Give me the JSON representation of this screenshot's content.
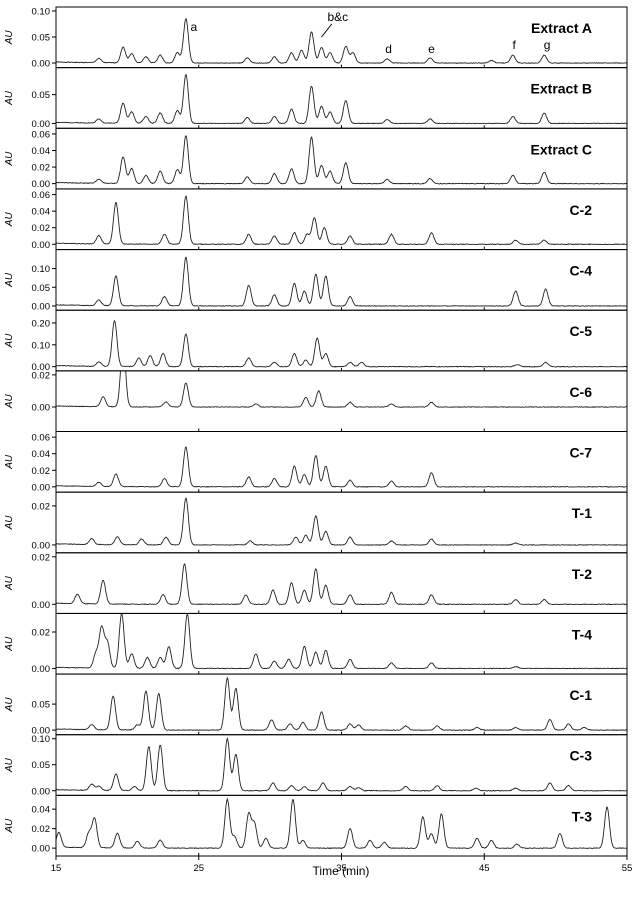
{
  "chart_data": {
    "type": "line",
    "xlabel": "Time (min)",
    "xlim": [
      15,
      55
    ],
    "x_ticks": [
      15,
      25,
      35,
      45,
      55
    ],
    "ylabel": "AU",
    "panels": [
      {
        "name": "Extract A",
        "ylim": [
          -0.005,
          0.1
        ],
        "y_ticks": [
          0.0,
          0.05,
          0.1
        ],
        "peaks": [
          [
            18.0,
            0.008
          ],
          [
            19.7,
            0.03
          ],
          [
            20.3,
            0.018
          ],
          [
            21.3,
            0.012
          ],
          [
            22.3,
            0.015
          ],
          [
            23.5,
            0.02
          ],
          [
            24.1,
            0.085
          ],
          [
            28.4,
            0.01
          ],
          [
            30.3,
            0.012
          ],
          [
            31.5,
            0.02
          ],
          [
            32.2,
            0.025
          ],
          [
            32.9,
            0.06
          ],
          [
            33.6,
            0.03
          ],
          [
            34.2,
            0.02
          ],
          [
            35.3,
            0.032
          ],
          [
            35.8,
            0.02
          ],
          [
            38.2,
            0.008
          ],
          [
            41.2,
            0.01
          ],
          [
            45.5,
            0.005
          ],
          [
            47.0,
            0.015
          ],
          [
            49.2,
            0.015
          ]
        ],
        "annotations": [
          {
            "text": "a",
            "x": 24.1
          },
          {
            "text": "b&c",
            "x": 34.6
          },
          {
            "text": "d",
            "x": 38.3
          },
          {
            "text": "e",
            "x": 41.3
          },
          {
            "text": "f",
            "x": 47.1
          },
          {
            "text": "g",
            "x": 49.4
          }
        ]
      },
      {
        "name": "Extract B",
        "ylim": [
          -0.005,
          0.09
        ],
        "y_ticks": [
          0.0,
          0.05
        ],
        "peaks": [
          [
            18.0,
            0.007
          ],
          [
            19.7,
            0.035
          ],
          [
            20.3,
            0.02
          ],
          [
            21.3,
            0.012
          ],
          [
            22.3,
            0.018
          ],
          [
            23.5,
            0.022
          ],
          [
            24.1,
            0.085
          ],
          [
            28.4,
            0.01
          ],
          [
            30.3,
            0.012
          ],
          [
            31.5,
            0.025
          ],
          [
            32.9,
            0.065
          ],
          [
            33.6,
            0.03
          ],
          [
            34.2,
            0.02
          ],
          [
            35.3,
            0.04
          ],
          [
            38.2,
            0.007
          ],
          [
            41.2,
            0.008
          ],
          [
            47.0,
            0.012
          ],
          [
            49.2,
            0.018
          ]
        ],
        "annotations": []
      },
      {
        "name": "Extract C",
        "ylim": [
          -0.004,
          0.062
        ],
        "y_ticks": [
          0.0,
          0.02,
          0.04,
          0.06
        ],
        "peaks": [
          [
            18.0,
            0.005
          ],
          [
            19.7,
            0.032
          ],
          [
            20.3,
            0.018
          ],
          [
            21.3,
            0.01
          ],
          [
            22.3,
            0.015
          ],
          [
            23.5,
            0.017
          ],
          [
            24.1,
            0.058
          ],
          [
            28.4,
            0.008
          ],
          [
            30.3,
            0.012
          ],
          [
            31.5,
            0.018
          ],
          [
            32.9,
            0.056
          ],
          [
            33.6,
            0.022
          ],
          [
            34.2,
            0.015
          ],
          [
            35.3,
            0.025
          ],
          [
            38.2,
            0.005
          ],
          [
            41.2,
            0.006
          ],
          [
            47.0,
            0.01
          ],
          [
            49.2,
            0.014
          ]
        ],
        "annotations": []
      },
      {
        "name": "C-2",
        "ylim": [
          -0.004,
          0.062
        ],
        "y_ticks": [
          0.0,
          0.02,
          0.04,
          0.06
        ],
        "peaks": [
          [
            18.0,
            0.01
          ],
          [
            19.2,
            0.05
          ],
          [
            22.6,
            0.012
          ],
          [
            24.1,
            0.058
          ],
          [
            28.5,
            0.012
          ],
          [
            30.3,
            0.01
          ],
          [
            31.7,
            0.014
          ],
          [
            32.6,
            0.012
          ],
          [
            33.1,
            0.032
          ],
          [
            33.8,
            0.02
          ],
          [
            35.6,
            0.01
          ],
          [
            38.5,
            0.012
          ],
          [
            41.3,
            0.014
          ],
          [
            47.2,
            0.005
          ],
          [
            49.2,
            0.005
          ]
        ],
        "annotations": []
      },
      {
        "name": "C-4",
        "ylim": [
          -0.006,
          0.14
        ],
        "y_ticks": [
          0.0,
          0.05,
          0.1
        ],
        "peaks": [
          [
            18.0,
            0.015
          ],
          [
            19.2,
            0.08
          ],
          [
            22.6,
            0.025
          ],
          [
            24.1,
            0.13
          ],
          [
            28.5,
            0.055
          ],
          [
            30.3,
            0.03
          ],
          [
            31.7,
            0.06
          ],
          [
            32.4,
            0.04
          ],
          [
            33.2,
            0.085
          ],
          [
            33.9,
            0.08
          ],
          [
            35.6,
            0.025
          ],
          [
            47.2,
            0.04
          ],
          [
            49.3,
            0.045
          ]
        ],
        "annotations": []
      },
      {
        "name": "C-5",
        "ylim": [
          -0.01,
          0.24
        ],
        "y_ticks": [
          0.0,
          0.1,
          0.2
        ],
        "peaks": [
          [
            18.0,
            0.02
          ],
          [
            19.1,
            0.21
          ],
          [
            20.8,
            0.04
          ],
          [
            21.6,
            0.05
          ],
          [
            22.5,
            0.06
          ],
          [
            24.1,
            0.15
          ],
          [
            28.5,
            0.04
          ],
          [
            30.3,
            0.02
          ],
          [
            31.7,
            0.06
          ],
          [
            32.5,
            0.03
          ],
          [
            33.3,
            0.13
          ],
          [
            33.9,
            0.06
          ],
          [
            35.6,
            0.02
          ],
          [
            36.4,
            0.02
          ],
          [
            47.3,
            0.01
          ],
          [
            49.3,
            0.02
          ]
        ],
        "annotations": []
      },
      {
        "name": "C-6",
        "ylim": [
          -0.014,
          0.02
        ],
        "y_ticks": [
          0.0,
          0.02
        ],
        "peaks": [
          [
            18.3,
            0.006
          ],
          [
            19.7,
            0.04
          ],
          [
            22.7,
            0.003
          ],
          [
            24.1,
            0.015
          ],
          [
            29.0,
            0.002
          ],
          [
            32.5,
            0.006
          ],
          [
            33.4,
            0.01
          ],
          [
            35.6,
            0.003
          ],
          [
            38.5,
            0.002
          ],
          [
            41.3,
            0.003
          ]
        ],
        "annotations": []
      },
      {
        "name": "C-7",
        "ylim": [
          -0.004,
          0.062
        ],
        "y_ticks": [
          0.0,
          0.02,
          0.04,
          0.06
        ],
        "peaks": [
          [
            18.0,
            0.005
          ],
          [
            19.2,
            0.015
          ],
          [
            22.6,
            0.01
          ],
          [
            24.1,
            0.048
          ],
          [
            28.5,
            0.012
          ],
          [
            30.3,
            0.01
          ],
          [
            31.7,
            0.025
          ],
          [
            32.4,
            0.015
          ],
          [
            33.2,
            0.038
          ],
          [
            33.9,
            0.025
          ],
          [
            35.6,
            0.008
          ],
          [
            38.5,
            0.007
          ],
          [
            41.3,
            0.017
          ]
        ],
        "annotations": []
      },
      {
        "name": "T-1",
        "ylim": [
          -0.003,
          0.025
        ],
        "y_ticks": [
          0.0,
          0.02
        ],
        "peaks": [
          [
            17.5,
            0.003
          ],
          [
            19.3,
            0.004
          ],
          [
            21.0,
            0.003
          ],
          [
            22.7,
            0.004
          ],
          [
            24.1,
            0.024
          ],
          [
            28.6,
            0.002
          ],
          [
            31.8,
            0.004
          ],
          [
            32.5,
            0.005
          ],
          [
            33.2,
            0.015
          ],
          [
            33.9,
            0.007
          ],
          [
            35.6,
            0.004
          ],
          [
            38.5,
            0.002
          ],
          [
            41.3,
            0.003
          ],
          [
            47.2,
            0.001
          ]
        ],
        "annotations": []
      },
      {
        "name": "T-2",
        "ylim": [
          -0.003,
          0.02
        ],
        "y_ticks": [
          0.0,
          0.02
        ],
        "peaks": [
          [
            16.5,
            0.004
          ],
          [
            18.3,
            0.01
          ],
          [
            22.5,
            0.004
          ],
          [
            24.0,
            0.017
          ],
          [
            28.3,
            0.004
          ],
          [
            30.2,
            0.006
          ],
          [
            31.5,
            0.009
          ],
          [
            32.4,
            0.006
          ],
          [
            33.2,
            0.015
          ],
          [
            33.9,
            0.008
          ],
          [
            35.6,
            0.004
          ],
          [
            38.5,
            0.005
          ],
          [
            41.3,
            0.004
          ],
          [
            47.2,
            0.002
          ],
          [
            49.2,
            0.002
          ]
        ],
        "annotations": []
      },
      {
        "name": "T-4",
        "ylim": [
          -0.002,
          0.028
        ],
        "y_ticks": [
          0.0,
          0.02
        ],
        "peaks": [
          [
            17.8,
            0.008
          ],
          [
            18.2,
            0.022
          ],
          [
            18.6,
            0.014
          ],
          [
            19.6,
            0.03
          ],
          [
            20.3,
            0.008
          ],
          [
            21.4,
            0.006
          ],
          [
            22.3,
            0.006
          ],
          [
            22.9,
            0.012
          ],
          [
            24.2,
            0.03
          ],
          [
            29.0,
            0.008
          ],
          [
            30.3,
            0.004
          ],
          [
            31.3,
            0.005
          ],
          [
            32.4,
            0.012
          ],
          [
            33.2,
            0.009
          ],
          [
            33.9,
            0.01
          ],
          [
            35.6,
            0.005
          ],
          [
            38.5,
            0.003
          ],
          [
            41.3,
            0.003
          ],
          [
            47.2,
            0.001
          ]
        ],
        "annotations": []
      },
      {
        "name": "C-1",
        "ylim": [
          -0.005,
          0.1
        ],
        "y_ticks": [
          0.0,
          0.05
        ],
        "peaks": [
          [
            17.5,
            0.01
          ],
          [
            19.0,
            0.065
          ],
          [
            20.7,
            0.01
          ],
          [
            21.3,
            0.075
          ],
          [
            22.2,
            0.07
          ],
          [
            27.0,
            0.1
          ],
          [
            27.6,
            0.08
          ],
          [
            30.1,
            0.02
          ],
          [
            31.4,
            0.012
          ],
          [
            32.3,
            0.015
          ],
          [
            33.6,
            0.035
          ],
          [
            35.6,
            0.012
          ],
          [
            36.2,
            0.01
          ],
          [
            39.5,
            0.008
          ],
          [
            41.7,
            0.008
          ],
          [
            44.5,
            0.005
          ],
          [
            47.2,
            0.005
          ],
          [
            49.6,
            0.02
          ],
          [
            50.9,
            0.012
          ],
          [
            52.0,
            0.005
          ]
        ],
        "annotations": []
      },
      {
        "name": "C-3",
        "ylim": [
          -0.005,
          0.1
        ],
        "y_ticks": [
          0.0,
          0.05,
          0.1
        ],
        "peaks": [
          [
            17.5,
            0.012
          ],
          [
            18.0,
            0.008
          ],
          [
            19.2,
            0.032
          ],
          [
            20.5,
            0.008
          ],
          [
            21.5,
            0.085
          ],
          [
            22.3,
            0.088
          ],
          [
            27.0,
            0.1
          ],
          [
            27.6,
            0.07
          ],
          [
            30.2,
            0.015
          ],
          [
            31.5,
            0.01
          ],
          [
            32.4,
            0.008
          ],
          [
            33.7,
            0.015
          ],
          [
            35.6,
            0.008
          ],
          [
            36.2,
            0.006
          ],
          [
            39.5,
            0.008
          ],
          [
            41.7,
            0.01
          ],
          [
            44.4,
            0.005
          ],
          [
            47.2,
            0.005
          ],
          [
            49.6,
            0.015
          ],
          [
            50.9,
            0.01
          ]
        ],
        "annotations": []
      },
      {
        "name": "T-3",
        "ylim": [
          -0.006,
          0.05
        ],
        "y_ticks": [
          0.0,
          0.02,
          0.04
        ],
        "peaks": [
          [
            15.2,
            0.015
          ],
          [
            17.3,
            0.015
          ],
          [
            17.7,
            0.03
          ],
          [
            19.3,
            0.015
          ],
          [
            20.7,
            0.007
          ],
          [
            22.3,
            0.008
          ],
          [
            27.0,
            0.05
          ],
          [
            27.5,
            0.012
          ],
          [
            28.5,
            0.035
          ],
          [
            28.9,
            0.025
          ],
          [
            29.7,
            0.01
          ],
          [
            31.6,
            0.05
          ],
          [
            32.3,
            0.008
          ],
          [
            35.6,
            0.02
          ],
          [
            37.0,
            0.008
          ],
          [
            38.0,
            0.006
          ],
          [
            40.7,
            0.032
          ],
          [
            41.3,
            0.015
          ],
          [
            42.0,
            0.035
          ],
          [
            44.5,
            0.01
          ],
          [
            45.5,
            0.008
          ],
          [
            47.3,
            0.004
          ],
          [
            50.3,
            0.015
          ],
          [
            53.6,
            0.042
          ]
        ],
        "annotations": []
      }
    ]
  }
}
